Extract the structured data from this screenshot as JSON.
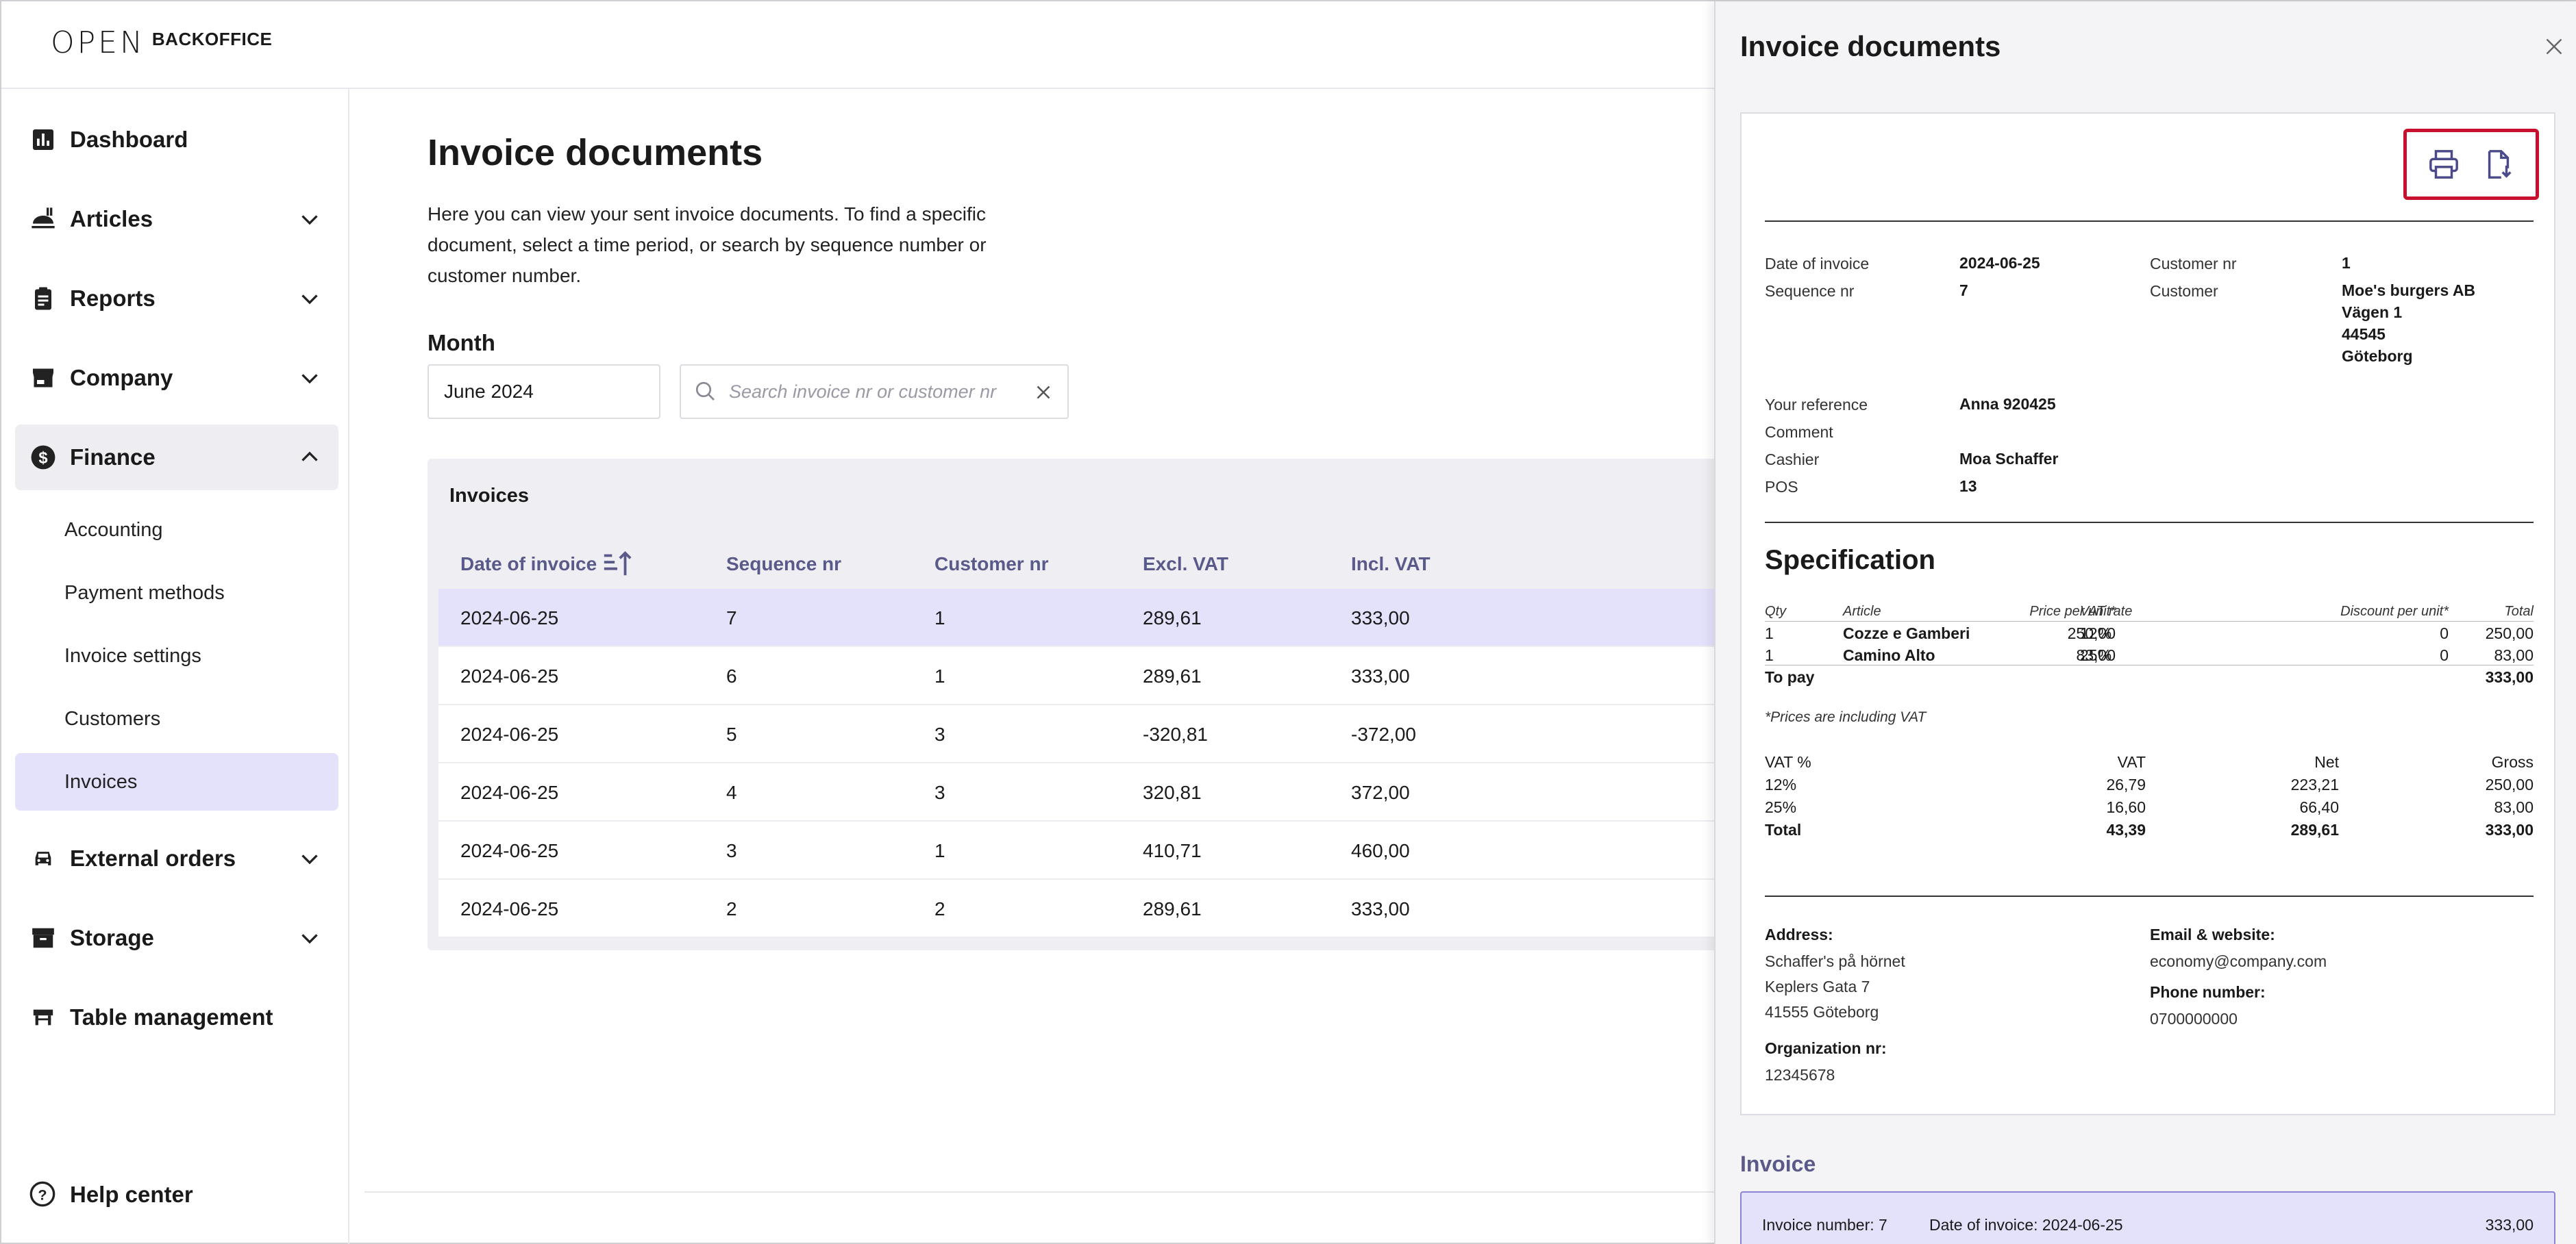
{
  "header": {
    "logo_mark": "OPEN",
    "logo_word": "BACKOFFICE"
  },
  "sidebar": {
    "items": [
      {
        "label": "Dashboard",
        "icon": "bar-chart-icon"
      },
      {
        "label": "Articles",
        "icon": "food-icon"
      },
      {
        "label": "Reports",
        "icon": "clipboard-icon"
      },
      {
        "label": "Company",
        "icon": "store-icon"
      },
      {
        "label": "Finance",
        "icon": "dollar-icon"
      },
      {
        "label": "External orders",
        "icon": "car-icon"
      },
      {
        "label": "Storage",
        "icon": "archive-icon"
      },
      {
        "label": "Table management",
        "icon": "table-icon"
      }
    ],
    "finance_sub": [
      {
        "label": "Accounting"
      },
      {
        "label": "Payment methods"
      },
      {
        "label": "Invoice settings"
      },
      {
        "label": "Customers"
      },
      {
        "label": "Invoices"
      }
    ],
    "help": "Help center"
  },
  "main": {
    "title": "Invoice documents",
    "description": "Here you can view your sent invoice documents. To find a specific document, select a time period, or search by sequence number or customer number.",
    "month_label": "Month",
    "month_value": "June 2024",
    "search_placeholder": "Search invoice nr or customer nr",
    "table_title": "Invoices",
    "columns": [
      "Date of invoice",
      "Sequence nr",
      "Customer nr",
      "Excl. VAT",
      "Incl. VAT"
    ],
    "rows": [
      {
        "date": "2024-06-25",
        "seq": "7",
        "cust": "1",
        "excl": "289,61",
        "incl": "333,00"
      },
      {
        "date": "2024-06-25",
        "seq": "6",
        "cust": "1",
        "excl": "289,61",
        "incl": "333,00"
      },
      {
        "date": "2024-06-25",
        "seq": "5",
        "cust": "3",
        "excl": "-320,81",
        "incl": "-372,00"
      },
      {
        "date": "2024-06-25",
        "seq": "4",
        "cust": "3",
        "excl": "320,81",
        "incl": "372,00"
      },
      {
        "date": "2024-06-25",
        "seq": "3",
        "cust": "1",
        "excl": "410,71",
        "incl": "460,00"
      },
      {
        "date": "2024-06-25",
        "seq": "2",
        "cust": "2",
        "excl": "289,61",
        "incl": "333,00"
      }
    ]
  },
  "drawer": {
    "title": "Invoice documents",
    "doc": {
      "date_label": "Date of invoice",
      "date_value": "2024-06-25",
      "seq_label": "Sequence nr",
      "seq_value": "7",
      "custnr_label": "Customer nr",
      "custnr_value": "1",
      "customer_label": "Customer",
      "customer_lines": [
        "Moe's burgers AB",
        "Vägen 1",
        "44545",
        "Göteborg"
      ],
      "ref_label": "Your reference",
      "ref_value": "Anna 920425",
      "comment_label": "Comment",
      "cashier_label": "Cashier",
      "cashier_value": "Moa Schaffer",
      "pos_label": "POS",
      "pos_value": "13",
      "spec_title": "Specification",
      "spec_headers": [
        "Qty",
        "Article",
        "VAT rate",
        "Price per unit*",
        "Discount per unit*",
        "Total"
      ],
      "spec_rows": [
        {
          "qty": "1",
          "article": "Cozze e Gamberi",
          "vat": "12%",
          "price": "250,00",
          "disc": "0",
          "total": "250,00"
        },
        {
          "qty": "1",
          "article": "Camino Alto",
          "vat": "25%",
          "price": "83,00",
          "disc": "0",
          "total": "83,00"
        }
      ],
      "to_pay_label": "To pay",
      "to_pay_value": "333,00",
      "note": "*Prices are including VAT",
      "vat_headers": [
        "VAT %",
        "VAT",
        "Net",
        "Gross"
      ],
      "vat_rows": [
        {
          "pct": "12%",
          "vat": "26,79",
          "net": "223,21",
          "gross": "250,00"
        },
        {
          "pct": "25%",
          "vat": "16,60",
          "net": "66,40",
          "gross": "83,00"
        }
      ],
      "vat_total": {
        "pct": "Total",
        "vat": "43,39",
        "net": "289,61",
        "gross": "333,00"
      },
      "address_label": "Address:",
      "address_lines": [
        "Schaffer's på hörnet",
        "Keplers Gata 7",
        "41555 Göteborg"
      ],
      "org_label": "Organization nr:",
      "org_value": "12345678",
      "email_label": "Email & website:",
      "email_value": "economy@company.com",
      "phone_label": "Phone number:",
      "phone_value": "0700000000"
    },
    "invoice_section_title": "Invoice",
    "invoice_card": {
      "number": "Invoice number: 7",
      "date": "Date of invoice: 2024-06-25",
      "amount": "333,00"
    }
  },
  "colors": {
    "accent": "#5a5a8a",
    "selected_bg": "#e4e1fb",
    "highlight_border": "#c8102e"
  }
}
